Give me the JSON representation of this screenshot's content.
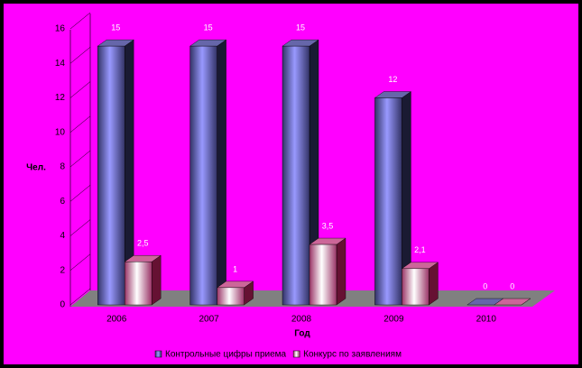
{
  "chart_data": {
    "type": "bar3d",
    "y_label": "Чел.",
    "x_label": "Год",
    "categories": [
      "2006",
      "2007",
      "2008",
      "2009",
      "2010"
    ],
    "series": [
      {
        "name": "Контрольные цифры приема",
        "color": "#9999ff",
        "values": [
          15,
          15,
          15,
          12,
          0
        ]
      },
      {
        "name": "Конкурс по заявлениям",
        "color": "#993366",
        "values": [
          2.5,
          1,
          3.5,
          2.1,
          0
        ],
        "value_labels": [
          "2,5",
          "1",
          "3,5",
          "2,1",
          "0"
        ]
      }
    ],
    "ylim": [
      0,
      16
    ],
    "yticks": [
      0,
      2,
      4,
      6,
      8,
      10,
      12,
      14,
      16
    ],
    "legend": "bottom"
  }
}
